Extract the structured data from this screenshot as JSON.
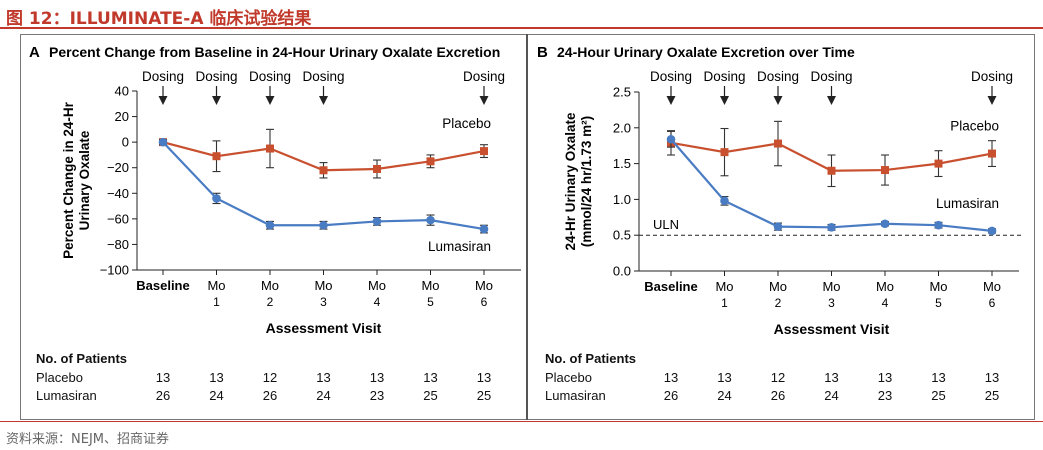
{
  "figure": {
    "caption": "图 12：ILLUMINATE-A 临床试验结果",
    "source": "资料来源：NEJM、招商证券"
  },
  "colors": {
    "placebo": "#c8502f",
    "lumasiran": "#4a7cc3",
    "accent": "#c0392b"
  },
  "chart_data": [
    {
      "type": "line",
      "panel_letter": "A",
      "title": "Percent Change from Baseline in 24-Hour Urinary Oxalate Excretion",
      "xlabel": "Assessment Visit",
      "ylabel_lines": [
        "Percent Change in 24-Hr",
        "Urinary Oxalate"
      ],
      "ylim": [
        -100,
        40
      ],
      "yticks": [
        40,
        20,
        0,
        -20,
        -40,
        -60,
        -80,
        -100
      ],
      "ytick_labels": [
        "40",
        "20",
        "0",
        "−20",
        "−40",
        "−60",
        "−80",
        "−100"
      ],
      "categories": [
        {
          "top": "Baseline",
          "bottom": ""
        },
        {
          "top": "Mo",
          "bottom": "1"
        },
        {
          "top": "Mo",
          "bottom": "2"
        },
        {
          "top": "Mo",
          "bottom": "3"
        },
        {
          "top": "Mo",
          "bottom": "4"
        },
        {
          "top": "Mo",
          "bottom": "5"
        },
        {
          "top": "Mo",
          "bottom": "6"
        }
      ],
      "dosing_label": "Dosing",
      "dosing_at": [
        0,
        1,
        2,
        3,
        6
      ],
      "series": [
        {
          "name": "Placebo",
          "marker": "square",
          "values": [
            0,
            -11,
            -5,
            -22,
            -21,
            -15,
            -7
          ],
          "err": [
            2,
            12,
            15,
            6,
            7,
            5,
            5
          ],
          "label_at": 6,
          "label_pos": "above"
        },
        {
          "name": "Lumasiran",
          "marker": "circle",
          "values": [
            0,
            -44,
            -65,
            -65,
            -62,
            -61,
            -68
          ],
          "err": [
            2,
            4,
            3,
            3,
            3,
            4,
            3
          ],
          "label_at": 6,
          "label_pos": "below"
        }
      ],
      "patients": {
        "header": "No. of Patients",
        "rows": [
          {
            "label": "Placebo",
            "values": [
              "13",
              "13",
              "12",
              "13",
              "13",
              "13",
              "13"
            ]
          },
          {
            "label": "Lumasiran",
            "values": [
              "26",
              "24",
              "26",
              "24",
              "23",
              "25",
              "25"
            ]
          }
        ]
      }
    },
    {
      "type": "line",
      "panel_letter": "B",
      "title": "24-Hour Urinary Oxalate Excretion over Time",
      "xlabel": "Assessment Visit",
      "ylabel_lines": [
        "24-Hr Urinary Oxalate",
        "(mmol/24 hr/1.73 m²)"
      ],
      "ylim": [
        0,
        2.5
      ],
      "yticks": [
        2.5,
        2.0,
        1.5,
        1.0,
        0.5,
        0.0
      ],
      "ytick_labels": [
        "2.5",
        "2.0",
        "1.5",
        "1.0",
        "0.5",
        "0.0"
      ],
      "reference_line": {
        "label": "ULN",
        "value": 0.5
      },
      "categories": [
        {
          "top": "Baseline",
          "bottom": ""
        },
        {
          "top": "Mo",
          "bottom": "1"
        },
        {
          "top": "Mo",
          "bottom": "2"
        },
        {
          "top": "Mo",
          "bottom": "3"
        },
        {
          "top": "Mo",
          "bottom": "4"
        },
        {
          "top": "Mo",
          "bottom": "5"
        },
        {
          "top": "Mo",
          "bottom": "6"
        }
      ],
      "dosing_label": "Dosing",
      "dosing_at": [
        0,
        1,
        2,
        3,
        6
      ],
      "series": [
        {
          "name": "Placebo",
          "marker": "square",
          "values": [
            1.79,
            1.66,
            1.78,
            1.4,
            1.41,
            1.5,
            1.64
          ],
          "err": [
            0.17,
            0.33,
            0.31,
            0.22,
            0.21,
            0.18,
            0.18
          ],
          "label_at": 6,
          "label_pos": "above"
        },
        {
          "name": "Lumasiran",
          "marker": "circle",
          "values": [
            1.84,
            0.98,
            0.62,
            0.61,
            0.66,
            0.64,
            0.56
          ],
          "err": [
            0.11,
            0.06,
            0.05,
            0.04,
            0.03,
            0.04,
            0.03
          ],
          "label_at": 6,
          "label_pos": "above"
        }
      ],
      "patients": {
        "header": "No. of Patients",
        "rows": [
          {
            "label": "Placebo",
            "values": [
              "13",
              "13",
              "12",
              "13",
              "13",
              "13",
              "13"
            ]
          },
          {
            "label": "Lumasiran",
            "values": [
              "26",
              "24",
              "26",
              "24",
              "23",
              "25",
              "25"
            ]
          }
        ]
      }
    }
  ]
}
